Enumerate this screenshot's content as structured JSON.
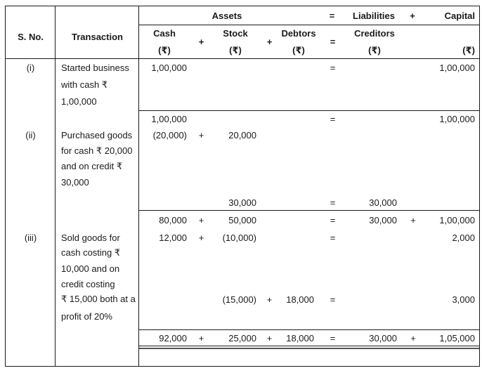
{
  "header": {
    "sno": "S. No.",
    "transaction": "Transaction",
    "assets": "Assets",
    "liabilities": "Liabilities",
    "capital": "Capital",
    "cash": "Cash",
    "stock": "Stock",
    "debtors": "Debtors",
    "creditors": "Creditors",
    "rupee": "(₹)",
    "plus": "+",
    "eq": "="
  },
  "rows": [
    {
      "sno": "(i)",
      "tr": "Started business",
      "cash": "1,00,000",
      "eq": "=",
      "cap": "1,00,000"
    },
    {
      "tr": "with cash ₹"
    },
    {
      "tr": "1,00,000"
    },
    {
      "cash": "1,00,000",
      "eq": "=",
      "cap": "1,00,000"
    },
    {
      "sno": "(ii)",
      "tr": "Purchased goods",
      "cash": "(20,000)",
      "op1": "+",
      "stock": "20,000"
    },
    {
      "tr": "for cash ₹ 20,000"
    },
    {
      "tr": "and on credit ₹"
    },
    {
      "tr": "30,000"
    },
    {
      "stock": "30,000",
      "eq": "=",
      "cred": "30,000"
    },
    {
      "cash": "80,000",
      "op1": "+",
      "stock": "50,000",
      "eq": "=",
      "cred": "30,000",
      "op3": "+",
      "cap": "1,00,000"
    },
    {
      "sno": "(iii)",
      "tr": "Sold goods for",
      "cash": "12,000",
      "op1": "+",
      "stock": "(10,000)",
      "eq": "=",
      "cap": "2,000"
    },
    {
      "tr": "cash costing ₹"
    },
    {
      "tr": "10,000 and on"
    },
    {
      "tr": "credit costing"
    },
    {
      "tr": "₹ 15,000 both at a",
      "stock": "(15,000)",
      "op2": "+",
      "deb": "18,000",
      "eq": "=",
      "cap": "3,000"
    },
    {
      "tr": "profit of 20%"
    },
    {
      "cash": "92,000",
      "op1": "+",
      "stock": "25,000",
      "op2": "+",
      "deb": "18,000",
      "eq": "=",
      "cred": "30,000",
      "op3": "+",
      "cap": "1,05,000"
    }
  ]
}
